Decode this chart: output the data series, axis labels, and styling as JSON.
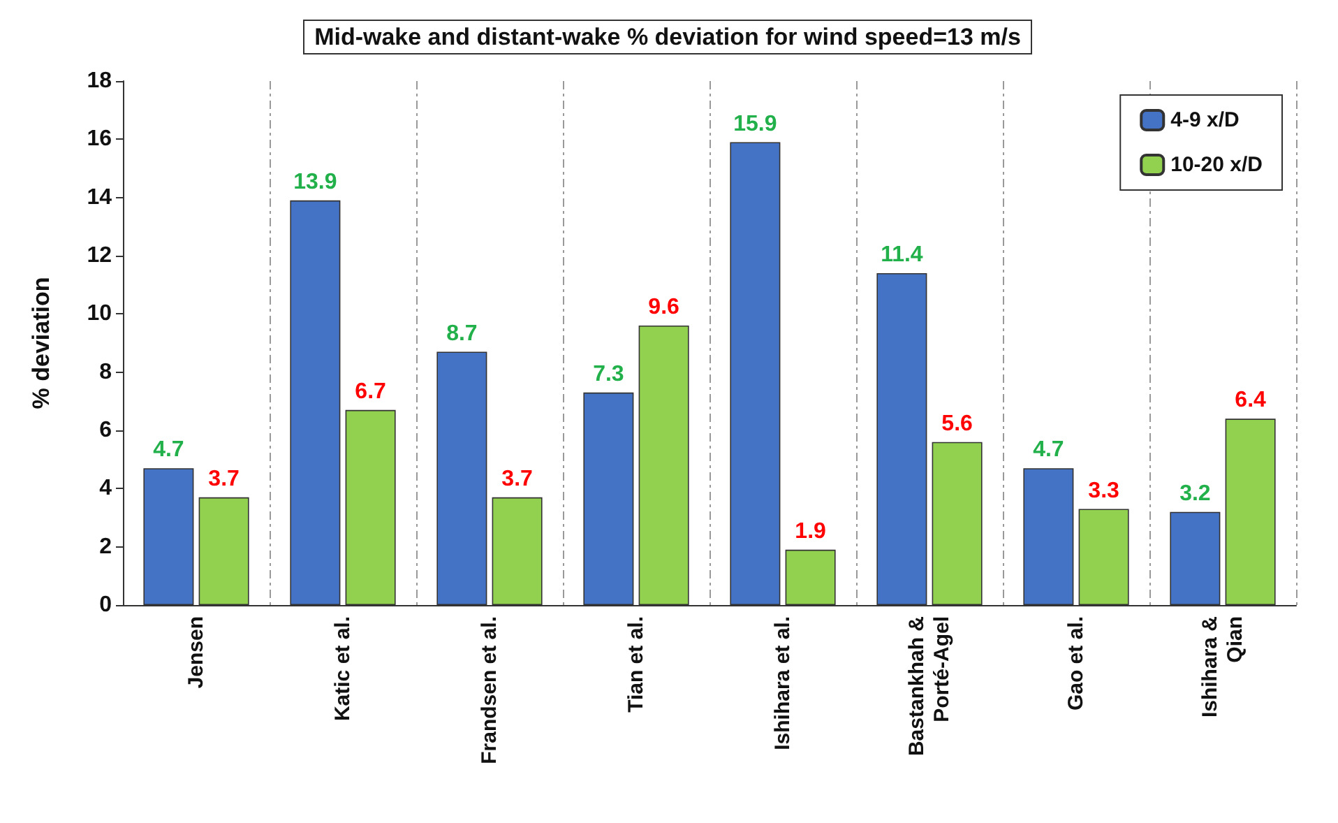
{
  "chart_data": {
    "type": "bar",
    "title": "Mid-wake and distant-wake % deviation for wind speed=13 m/s",
    "ylabel": "% deviation",
    "categories": [
      "Jensen",
      "Katic et al.",
      "Frandsen et al.",
      "Tian et al.",
      "Ishihara et al.",
      "Bastankhah &\nPorté-Agel",
      "Gao et al.",
      "Ishihara &\nQian"
    ],
    "series": [
      {
        "name": "4-9 x/D",
        "color": "#4472c4",
        "values": [
          4.7,
          13.9,
          8.7,
          7.3,
          15.9,
          11.4,
          4.7,
          3.2
        ]
      },
      {
        "name": "10-20 x/D",
        "color": "#92d050",
        "values": [
          3.7,
          6.7,
          3.7,
          9.6,
          1.9,
          5.6,
          3.3,
          6.4
        ]
      }
    ],
    "ylim": [
      0,
      18
    ],
    "yticks": [
      0,
      2,
      4,
      6,
      8,
      10,
      12,
      14,
      16,
      18
    ],
    "grid": "x",
    "legend": "top right",
    "data_labels": true
  }
}
